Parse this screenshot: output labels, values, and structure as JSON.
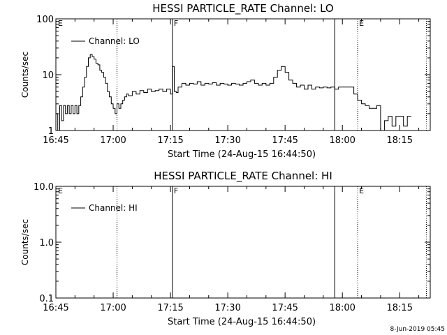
{
  "chart_data": [
    {
      "type": "line",
      "title": "HESSI PARTICLE_RATE Channel: LO",
      "xlabel": "Start Time (24-Aug-15 16:44:50)",
      "ylabel": "Counts/sec",
      "x_unit": "minutes after 16:45",
      "xlim": [
        0,
        98
      ],
      "ylim": [
        1,
        100
      ],
      "yscale": "log",
      "x_ticks": [
        0,
        15,
        30,
        45,
        60,
        75,
        90
      ],
      "x_tick_labels": [
        "16:45",
        "17:00",
        "17:15",
        "17:30",
        "17:45",
        "18:00",
        "18:15"
      ],
      "y_ticks": [
        1,
        10,
        100
      ],
      "y_tick_labels": [
        "1",
        "10",
        "100"
      ],
      "legend": {
        "label": "Channel: LO",
        "position": "top-left"
      },
      "series": [
        {
          "name": "Channel: LO",
          "x": [
            0,
            0.5,
            1,
            1.5,
            2,
            2.5,
            3,
            3.5,
            4,
            4.5,
            5,
            5.5,
            6,
            6.5,
            7,
            7.5,
            8,
            8.5,
            9,
            9.5,
            10,
            10.5,
            11,
            11.5,
            12,
            12.5,
            13,
            13.5,
            14,
            14.5,
            15,
            15.5,
            16,
            16.5,
            17,
            17.5,
            18,
            18.5,
            19,
            20,
            21,
            22,
            23,
            24,
            25,
            26,
            27,
            28,
            29,
            30,
            30.5,
            31,
            31.5,
            32,
            33,
            34,
            35,
            36,
            37,
            38,
            39,
            40,
            41,
            42,
            43,
            44,
            45,
            46,
            47,
            48,
            49,
            50,
            51,
            52,
            53,
            54,
            55,
            56,
            57,
            58,
            59,
            60,
            61,
            62,
            63,
            64,
            65,
            66,
            67,
            68,
            69,
            70,
            71,
            72,
            73,
            74,
            75,
            76,
            77,
            78,
            79,
            80,
            81,
            82,
            83,
            84,
            85,
            86,
            87,
            88,
            89,
            90,
            91,
            92,
            93
          ],
          "values": [
            2,
            1,
            2.8,
            1.5,
            2.8,
            2,
            2.8,
            2,
            2.8,
            2,
            2.8,
            2,
            2.8,
            4,
            6,
            9,
            14,
            20,
            23,
            21,
            19,
            16,
            15,
            12,
            11,
            9,
            7,
            5,
            4,
            3,
            2.5,
            2,
            3,
            2.5,
            3,
            3.5,
            4,
            4.5,
            4.2,
            5,
            4.5,
            5.2,
            4.8,
            5.5,
            5,
            5.2,
            5.5,
            5,
            5.5,
            4.5,
            14,
            5,
            4.8,
            6,
            7,
            6.5,
            7,
            6.8,
            7.5,
            6.5,
            7,
            6.8,
            7.2,
            6.5,
            7,
            6.8,
            6.5,
            7,
            6.8,
            6.5,
            7,
            7.5,
            8,
            7,
            6.5,
            7,
            6.5,
            7,
            9,
            12,
            14,
            11,
            8,
            7,
            6,
            6.5,
            5.5,
            6.5,
            5.5,
            6,
            5.8,
            6,
            5.8,
            6,
            5.5,
            6,
            6,
            6,
            6,
            4.5,
            3.5,
            3,
            2.8,
            2.5,
            2.5,
            2.8,
            1,
            1.5,
            1.8,
            1.2,
            1.8,
            1.8,
            1.2,
            1.8,
            1.8
          ]
        }
      ],
      "markers": [
        {
          "label": "E",
          "x": 0,
          "style": "dotted"
        },
        {
          "label": "",
          "x": 16,
          "style": "dotted"
        },
        {
          "label": "F",
          "x": 30.5,
          "style": "solid"
        },
        {
          "label": "",
          "x": 73,
          "style": "solid"
        },
        {
          "label": "E",
          "x": 79,
          "style": "dotted"
        },
        {
          "label": "",
          "x": 97,
          "style": "dotted"
        }
      ]
    },
    {
      "type": "line",
      "title": "HESSI PARTICLE_RATE Channel: HI",
      "xlabel": "Start Time (24-Aug-15 16:44:50)",
      "ylabel": "Counts/sec",
      "x_unit": "minutes after 16:45",
      "xlim": [
        0,
        98
      ],
      "ylim": [
        0.1,
        10
      ],
      "yscale": "log",
      "x_ticks": [
        0,
        15,
        30,
        45,
        60,
        75,
        90
      ],
      "x_tick_labels": [
        "16:45",
        "17:00",
        "17:15",
        "17:30",
        "17:45",
        "18:00",
        "18:15"
      ],
      "y_ticks": [
        0.1,
        1,
        10
      ],
      "y_tick_labels": [
        "0.1",
        "1.0",
        "10.0"
      ],
      "legend": {
        "label": "Channel: HI",
        "position": "top-left"
      },
      "series": [
        {
          "name": "Channel: HI",
          "x": [],
          "values": []
        }
      ],
      "markers": [
        {
          "label": "E",
          "x": 0,
          "style": "dotted"
        },
        {
          "label": "",
          "x": 16,
          "style": "dotted"
        },
        {
          "label": "F",
          "x": 30.5,
          "style": "solid"
        },
        {
          "label": "",
          "x": 73,
          "style": "solid"
        },
        {
          "label": "E",
          "x": 79,
          "style": "dotted"
        },
        {
          "label": "",
          "x": 97,
          "style": "dotted"
        }
      ]
    }
  ],
  "footer": {
    "timestamp": "8-Jun-2019 05:45"
  },
  "colors": {
    "background": "#ffffff",
    "foreground": "#000000"
  }
}
